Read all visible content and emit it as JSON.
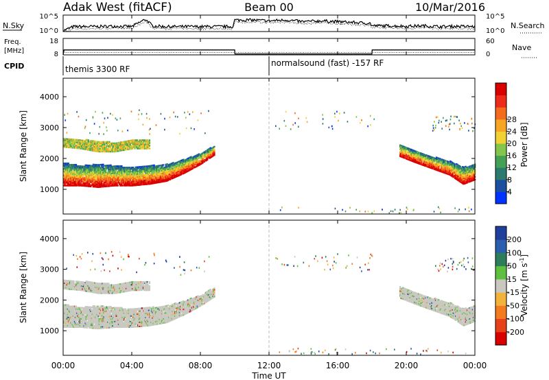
{
  "header": {
    "title": "Adak West (fitACF)",
    "beam": "Beam 00",
    "date": "10/Mar/2016"
  },
  "nsky_panel": {
    "left_label": "N.Sky",
    "right_label": "N.Search",
    "left_ticks": [
      "10^5",
      "10^0"
    ],
    "right_ticks": [
      "10^5",
      "10^0"
    ]
  },
  "freq_panel": {
    "left_label_1": "Freq.",
    "left_label_2": "[MHz]",
    "right_label": "Nave",
    "left_ticks": [
      "18",
      "8"
    ],
    "right_ticks": [
      "60",
      "0"
    ]
  },
  "cpid_panel": {
    "label": "CPID",
    "programs": [
      {
        "name": "themis 3300 RF",
        "start_hour": 0
      },
      {
        "name": "normalsound (fast) -157 RF",
        "start_hour": 12
      }
    ]
  },
  "x_axis": {
    "label": "Time UT",
    "ticks": [
      "00:00",
      "04:00",
      "08:00",
      "12:00",
      "16:00",
      "20:00",
      "00:00"
    ],
    "hours": [
      0,
      4,
      8,
      12,
      16,
      20,
      24
    ]
  },
  "y_axis": {
    "label": "Slant Range [km]",
    "ticks": [
      "1000",
      "2000",
      "3000",
      "4000"
    ],
    "values": [
      1000,
      2000,
      3000,
      4000
    ],
    "ylim": [
      200,
      4600
    ]
  },
  "power_scale": {
    "label": "Power [dB]",
    "ticks": [
      "4",
      "8",
      "12",
      "16",
      "20",
      "24",
      "28"
    ],
    "colors": [
      "#0033ff",
      "#1c4fa0",
      "#2c7a6e",
      "#44a055",
      "#84c64b",
      "#f2d233",
      "#f6a623",
      "#f56b1d",
      "#ec2b1a",
      "#d90000"
    ]
  },
  "velocity_scale": {
    "label": "Velocity",
    "unit": "[m s",
    "unit_exp": "-1",
    "unit_end": "]",
    "ticks": [
      "200",
      "100",
      "50",
      "15",
      "-15",
      "-50",
      "-100",
      "-200"
    ],
    "colors": [
      "#1f3f9c",
      "#2b5fad",
      "#2e7d5a",
      "#5fbf3f",
      "#c8c8c0",
      "#f2b33a",
      "#f27a1f",
      "#e8411a",
      "#d90000"
    ]
  },
  "chart_data": [
    {
      "type": "line",
      "name": "N.Sky / N.Search",
      "x_units": "hours UT",
      "series": [
        {
          "x": [
            0,
            0.6,
            1,
            2,
            3,
            4,
            4.8,
            5.2,
            6,
            7,
            8,
            9,
            9.9,
            10,
            11,
            12,
            13,
            14,
            15,
            16,
            17,
            17.9,
            18,
            19,
            20,
            21,
            22,
            23,
            24
          ],
          "y": [
            0.05,
            0.3,
            0.3,
            0.3,
            0.33,
            0.3,
            0.75,
            0.35,
            0.3,
            0.3,
            0.3,
            0.3,
            0.3,
            0.7,
            0.7,
            0.65,
            0.7,
            0.6,
            0.65,
            0.6,
            0.55,
            0.5,
            0.35,
            0.35,
            0.32,
            0.35,
            0.3,
            0.32,
            0.3
          ]
        }
      ]
    },
    {
      "type": "line",
      "name": "Freq / Nave",
      "x_units": "hours UT",
      "series": [
        {
          "x": [
            0,
            0.05,
            10,
            10.01,
            18,
            18.01,
            24
          ],
          "y": [
            8,
            11,
            11,
            8.6,
            8.6,
            11,
            11
          ]
        }
      ]
    },
    {
      "type": "heatmap",
      "name": "Power",
      "x_units": "hours UT",
      "y_units": "km",
      "bands": [
        {
          "x": [
            0,
            1,
            2,
            3,
            4,
            5,
            6,
            7,
            8,
            8.8
          ],
          "y_low": [
            1100,
            1100,
            1050,
            1100,
            1100,
            1150,
            1250,
            1500,
            1800,
            2100
          ],
          "y_high": [
            1850,
            1750,
            1800,
            1750,
            1700,
            1750,
            1800,
            1950,
            2150,
            2400
          ]
        },
        {
          "x": [
            0,
            1,
            2,
            3,
            4,
            5
          ],
          "y_low": [
            2350,
            2300,
            2200,
            2200,
            2300,
            2300
          ],
          "y_high": [
            2650,
            2600,
            2550,
            2500,
            2600,
            2600
          ]
        },
        {
          "x": [
            19.6,
            20.5,
            21.5,
            22.5,
            23.3,
            24
          ],
          "y_low": [
            2050,
            1850,
            1650,
            1450,
            1150,
            1300
          ],
          "y_high": [
            2450,
            2250,
            2050,
            1900,
            1700,
            1800
          ]
        }
      ]
    },
    {
      "type": "heatmap",
      "name": "Velocity",
      "x_units": "hours UT",
      "y_units": "km",
      "bands": [
        {
          "x": [
            0,
            1,
            2,
            3,
            4,
            5,
            6,
            7,
            8,
            8.8
          ],
          "y_low": [
            1100,
            1100,
            1050,
            1100,
            1100,
            1150,
            1250,
            1500,
            1800,
            2100
          ],
          "y_high": [
            1850,
            1750,
            1800,
            1750,
            1700,
            1750,
            1800,
            1950,
            2150,
            2400
          ]
        },
        {
          "x": [
            0,
            1,
            2,
            3,
            4,
            5
          ],
          "y_low": [
            2350,
            2300,
            2200,
            2200,
            2300,
            2300
          ],
          "y_high": [
            2650,
            2600,
            2550,
            2500,
            2600,
            2600
          ]
        },
        {
          "x": [
            19.6,
            20.5,
            21.5,
            22.5,
            23.3,
            24
          ],
          "y_low": [
            2050,
            1850,
            1650,
            1450,
            1150,
            1300
          ],
          "y_high": [
            2450,
            2250,
            2050,
            1900,
            1700,
            1800
          ]
        }
      ]
    }
  ]
}
